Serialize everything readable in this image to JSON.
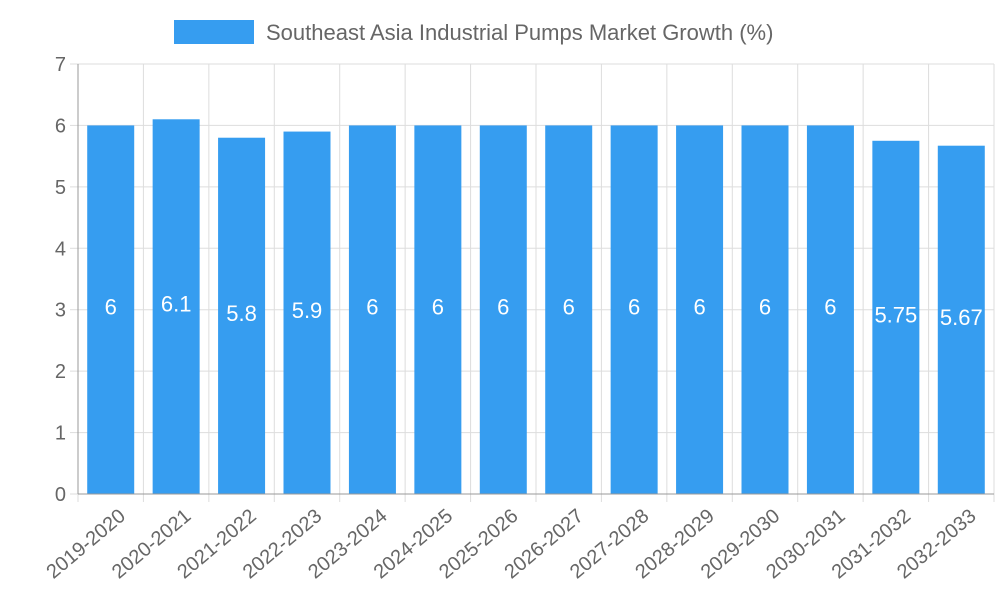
{
  "chart_data": {
    "type": "bar",
    "title": "",
    "xlabel": "",
    "ylabel": "",
    "ylim": [
      0,
      7
    ],
    "yticks": [
      0,
      1,
      2,
      3,
      4,
      5,
      6,
      7
    ],
    "grid": true,
    "legend_position": "top-center",
    "categories": [
      "2019-2020",
      "2020-2021",
      "2021-2022",
      "2022-2023",
      "2023-2024",
      "2024-2025",
      "2025-2026",
      "2026-2027",
      "2027-2028",
      "2028-2029",
      "2029-2030",
      "2030-2031",
      "2031-2032",
      "2032-2033"
    ],
    "series": [
      {
        "name": "Southeast Asia Industrial Pumps Market Growth (%)",
        "values": [
          6,
          6.1,
          5.8,
          5.9,
          6,
          6,
          6,
          6,
          6,
          6,
          6,
          6,
          5.75,
          5.67
        ],
        "labels": [
          "6",
          "6.1",
          "5.8",
          "5.9",
          "6",
          "6",
          "6",
          "6",
          "6",
          "6",
          "6",
          "6",
          "5.75",
          "5.67"
        ],
        "color": "#369df0"
      }
    ]
  },
  "colors": {
    "grid": "#dddddd",
    "axis": "#999999",
    "text": "#666666",
    "bar": "#369df0",
    "data_label": "#ffffff"
  }
}
